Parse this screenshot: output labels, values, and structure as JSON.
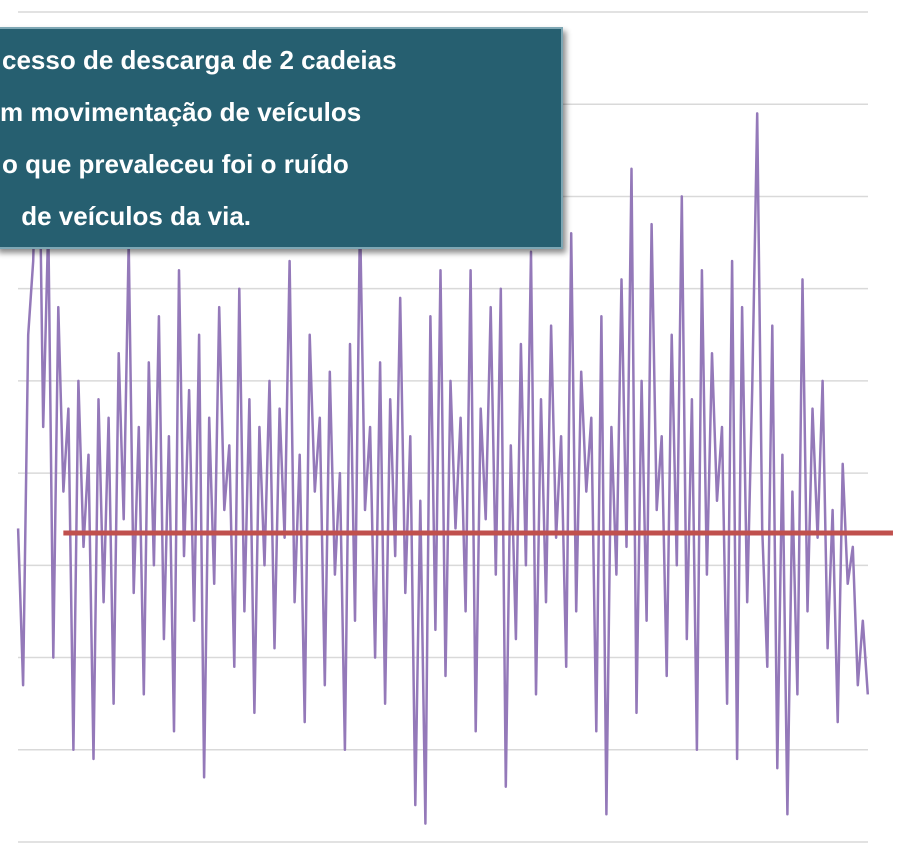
{
  "chart_data": {
    "type": "line",
    "x": [
      0,
      1,
      2,
      3,
      4,
      5,
      6,
      7,
      8,
      9,
      10,
      11,
      12,
      13,
      14,
      15,
      16,
      17,
      18,
      19,
      20,
      21,
      22,
      23,
      24,
      25,
      26,
      27,
      28,
      29,
      30,
      31,
      32,
      33,
      34,
      35,
      36,
      37,
      38,
      39,
      40,
      41,
      42,
      43,
      44,
      45,
      46,
      47,
      48,
      49,
      50,
      51,
      52,
      53,
      54,
      55,
      56,
      57,
      58,
      59,
      60,
      61,
      62,
      63,
      64,
      65,
      66,
      67,
      68,
      69,
      70,
      71,
      72,
      73,
      74,
      75,
      76,
      77,
      78,
      79,
      80,
      81,
      82,
      83,
      84,
      85,
      86,
      87,
      88,
      89,
      90,
      91,
      92,
      93,
      94,
      95,
      96,
      97,
      98,
      99,
      100,
      101,
      102,
      103,
      104,
      105,
      106,
      107,
      108,
      109,
      110,
      111,
      112,
      113,
      114,
      115,
      116,
      117,
      118,
      119,
      120,
      121,
      122,
      123,
      124,
      125,
      126,
      127,
      128,
      129,
      130,
      131,
      132,
      133,
      134,
      135,
      136,
      137,
      138,
      139,
      140,
      141,
      142,
      143,
      144,
      145,
      146,
      147,
      148,
      149,
      150,
      151,
      152,
      153,
      154,
      155,
      156,
      157,
      158,
      159,
      160,
      161,
      162,
      163,
      164,
      165,
      166,
      167,
      168,
      169
    ],
    "series": [
      {
        "color": "#9479b9",
        "values": [
          3.4,
          1.7,
          5.5,
          6.3,
          8.5,
          4.5,
          6.7,
          2.0,
          5.8,
          3.8,
          4.7,
          1.0,
          5.0,
          3.2,
          4.2,
          0.9,
          4.8,
          2.6,
          4.6,
          1.5,
          5.3,
          3.5,
          6.5,
          2.7,
          4.5,
          1.6,
          5.2,
          3.0,
          5.7,
          2.2,
          4.4,
          1.2,
          6.2,
          3.1,
          4.9,
          2.4,
          5.5,
          0.7,
          4.6,
          2.8,
          5.8,
          3.6,
          4.3,
          1.9,
          6.0,
          2.5,
          4.8,
          1.4,
          4.5,
          3.0,
          5.0,
          2.1,
          4.7,
          3.3,
          6.3,
          2.6,
          4.2,
          1.3,
          5.5,
          3.8,
          4.6,
          1.7,
          5.1,
          2.9,
          4.0,
          1.0,
          5.4,
          2.4,
          6.8,
          3.6,
          4.5,
          2.0,
          5.2,
          1.5,
          4.8,
          3.1,
          5.9,
          2.7,
          4.4,
          0.4,
          3.7,
          0.2,
          5.7,
          2.3,
          6.2,
          1.8,
          5.0,
          3.4,
          4.6,
          2.5,
          6.2,
          1.2,
          4.7,
          3.5,
          5.8,
          2.9,
          6.0,
          0.6,
          4.3,
          2.2,
          5.4,
          3.0,
          6.4,
          1.6,
          4.8,
          2.6,
          5.6,
          3.3,
          4.4,
          1.9,
          6.6,
          2.5,
          5.1,
          3.8,
          4.6,
          1.2,
          5.7,
          0.3,
          4.5,
          2.9,
          6.1,
          3.2,
          7.3,
          1.4,
          5.0,
          2.4,
          6.7,
          3.6,
          4.4,
          1.8,
          5.5,
          3.0,
          7.0,
          2.2,
          4.8,
          1.0,
          6.2,
          2.9,
          5.3,
          3.7,
          4.5,
          1.5,
          6.3,
          0.9,
          5.8,
          2.6,
          4.9,
          7.9,
          3.4,
          1.9,
          5.6,
          0.8,
          4.2,
          0.3,
          3.8,
          1.6,
          6.1,
          2.5,
          4.7,
          3.3,
          5.0,
          2.1,
          3.6,
          1.3,
          4.1,
          2.8,
          3.2,
          1.7,
          2.4,
          1.6
        ]
      }
    ],
    "reference_line": {
      "y": 3.35,
      "x": [
        9,
        174
      ],
      "color": "#c0504d"
    },
    "xlim": [
      -3.6,
      174.8
    ],
    "ylim": [
      0,
      9
    ],
    "yticks": [
      0,
      1,
      2,
      3,
      4,
      5,
      6,
      7,
      8,
      9
    ],
    "grid": true,
    "annotation": [
      "cesso de descarga de 2 cadeias",
      "m movimentação de veículos",
      "o que prevaleceu foi o ruído",
      " de veículos da via."
    ]
  }
}
